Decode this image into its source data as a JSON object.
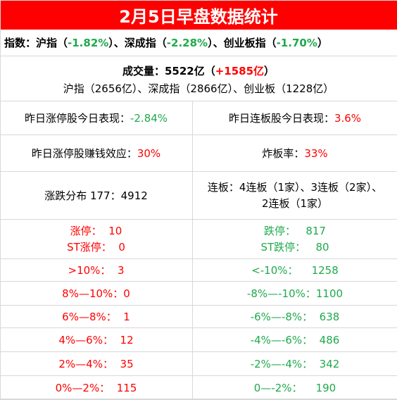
{
  "title": "2月5日早盘数据统计",
  "indices": {
    "prefix": "指数：沪指（",
    "sh": "-1.82%",
    "mid1": "）、深成指（",
    "sz": "-2.28%",
    "mid2": "）、创业板指（",
    "cy": "-1.70%",
    "suffix": "）"
  },
  "volume": {
    "label": "成交量：5522亿（",
    "change": "+1585亿",
    "suffix": "）",
    "breakdown": "沪指（2656亿）、深成指（2866亿）、创业板（1228亿）"
  },
  "rows": [
    {
      "left_label": "昨日涨停股今日表现：",
      "left_value": "-2.84%",
      "right_label": "昨日连板股今日表现：",
      "right_value": "3.6%"
    },
    {
      "left_label": "昨日涨停股赚钱效应：",
      "left_value": "30%",
      "right_label": "炸板率：",
      "right_value": "33%"
    }
  ],
  "distribution": {
    "left": "涨跌分布 177：4912",
    "right_line1": "连板：4连板（1家）、3连板（2家）、",
    "right_line2": "2连板（1家）"
  },
  "limits": {
    "up_label": "涨停：",
    "up_value": "10",
    "st_up_label": "ST涨停：",
    "st_up_value": "0",
    "down_label": "跌停：",
    "down_value": "817",
    "st_down_label": "ST跌停：",
    "st_down_value": "80"
  },
  "ranges": [
    {
      "up": ">10%：  3",
      "down": "<-10%：    1258"
    },
    {
      "up": "8%—10%：0",
      "down": "-8%—-10%：1100"
    },
    {
      "up": "6%—8%：  1",
      "down": "-6%—-8%：  638"
    },
    {
      "up": "4%—6%：  12",
      "down": "-4%—-6%：  486"
    },
    {
      "up": "2%—4%：  35",
      "down": "-2%—-4%：  342"
    },
    {
      "up": "0%—2%：  115",
      "down": "0—-2%：    190"
    }
  ],
  "colors": {
    "header_bg": "#ff0000",
    "up": "#ff0000",
    "down": "#1faa4c",
    "border": "#d8d8d8"
  }
}
